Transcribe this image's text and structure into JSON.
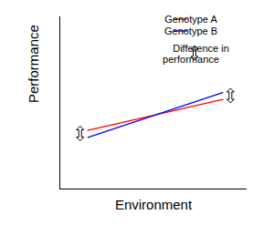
{
  "chart_data": {
    "type": "line",
    "x_label": "Environment",
    "y_label": "Performance",
    "x": [
      1.5,
      8.7
    ],
    "series": [
      {
        "name": "Genotype A",
        "color": "#ff0000",
        "values": [
          3.4,
          5.2
        ]
      },
      {
        "name": "Genotype B",
        "color": "#0000ff",
        "values": [
          3.0,
          5.6
        ]
      }
    ],
    "xlim": [
      0,
      10
    ],
    "ylim": [
      0,
      10
    ],
    "xticks": [],
    "yticks": [],
    "tick_labels": false,
    "legend": "upper right",
    "annotations": [
      "Difference in performance"
    ]
  }
}
